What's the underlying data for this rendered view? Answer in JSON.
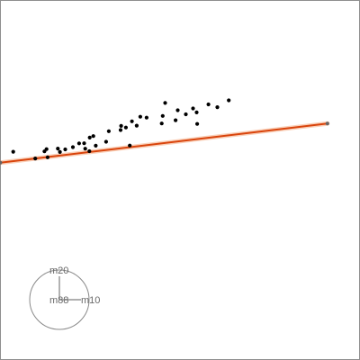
{
  "chart_data": {
    "type": "scatter",
    "points": [
      {
        "x": -2.9,
        "y": -2.56
      },
      {
        "x": -2.36,
        "y": -2.36
      },
      {
        "x": -2.28,
        "y": -2.06
      },
      {
        "x": -2.27,
        "y": -1.98
      },
      {
        "x": -2.13,
        "y": -2.14
      },
      {
        "x": -2.05,
        "y": -1.79
      },
      {
        "x": -1.96,
        "y": -1.83
      },
      {
        "x": -1.89,
        "y": -1.69
      },
      {
        "x": -1.77,
        "y": -1.52
      },
      {
        "x": -1.7,
        "y": -1.34
      },
      {
        "x": -1.6,
        "y": -1.26
      },
      {
        "x": -1.57,
        "y": -1.05
      },
      {
        "x": -1.52,
        "y": -0.96
      },
      {
        "x": -1.5,
        "y": -1.36
      },
      {
        "x": -1.38,
        "y": -1.35
      },
      {
        "x": -1.33,
        "y": -1.13
      },
      {
        "x": -1.28,
        "y": -0.61
      },
      {
        "x": -1.18,
        "y": -0.88
      },
      {
        "x": -1.11,
        "y": -0.3
      },
      {
        "x": -1.06,
        "y": -0.4
      },
      {
        "x": -0.99,
        "y": -0.26
      },
      {
        "x": -0.96,
        "y": -0.03
      },
      {
        "x": -0.86,
        "y": 0.2
      },
      {
        "x": -0.8,
        "y": -0.05
      },
      {
        "x": -0.72,
        "y": 0.28
      },
      {
        "x": -0.65,
        "y": -0.59
      },
      {
        "x": -0.56,
        "y": 0.89
      },
      {
        "x": -0.42,
        "y": 0.57
      },
      {
        "x": -0.33,
        "y": 0.39
      },
      {
        "x": -0.2,
        "y": 0.93
      },
      {
        "x": -0.1,
        "y": 0.68
      },
      {
        "x": 0.02,
        "y": 0.97
      },
      {
        "x": 0.08,
        "y": 1.21
      },
      {
        "x": 0.21,
        "y": 1.18
      },
      {
        "x": 0.33,
        "y": 1.54
      },
      {
        "x": 0.39,
        "y": 0.94
      },
      {
        "x": 0.55,
        "y": 1.62
      },
      {
        "x": 0.68,
        "y": 1.95
      }
    ],
    "fit_line": {
      "x": [
        -3.0,
        3.0
      ],
      "y": [
        -3.0,
        3.0
      ]
    },
    "xlim": [
      -3.4,
      4.2
    ],
    "ylim": [
      -3.4,
      3.4
    ],
    "rotation_deg": 36,
    "grid": false,
    "legend": "none",
    "line_color": "#d9440c",
    "point_color": "#000000",
    "axis_gizmo": {
      "labels": [
        "m20",
        "m10",
        "m88"
      ]
    }
  }
}
